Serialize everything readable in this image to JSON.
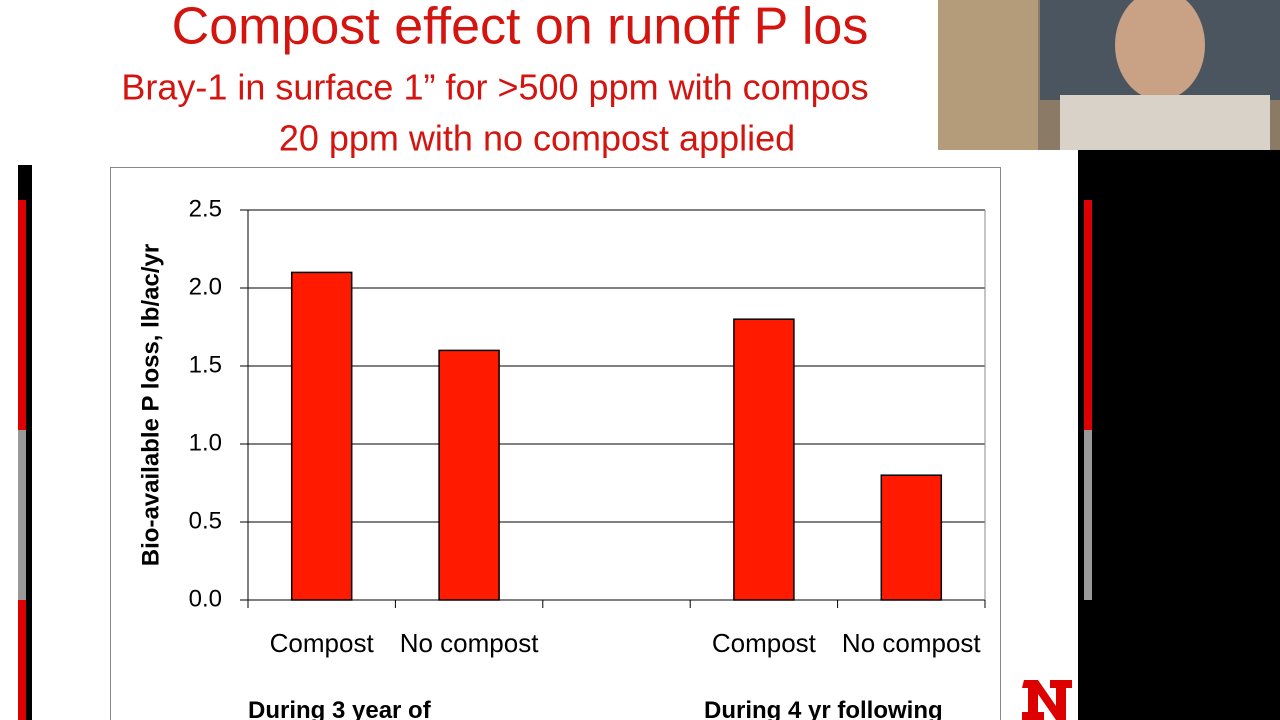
{
  "chart_data": {
    "type": "bar",
    "title": "Compost effect on runoff P los",
    "subtitle": [
      "Bray-1 in surface 1” for >500 ppm with compos",
      "20 ppm with no compost applied"
    ],
    "y_label": "Bio-available P loss, lb/ac/yr",
    "categories": [
      "Compost",
      "No compost",
      null,
      "Compost",
      "No compost"
    ],
    "values": [
      2.1,
      1.6,
      null,
      1.8,
      0.8
    ],
    "color": "#ff1a00",
    "groups": [
      "During 3 year of",
      "During 4 yr following"
    ],
    "ylim": [
      0,
      2.5
    ],
    "yticks": [
      {
        "value": 0,
        "label": "0.0"
      },
      0.5,
      {
        "value": 1,
        "label": "1.0"
      },
      1.5,
      {
        "value": 2,
        "label": "2.0"
      },
      2.5
    ],
    "grid": true
  }
}
